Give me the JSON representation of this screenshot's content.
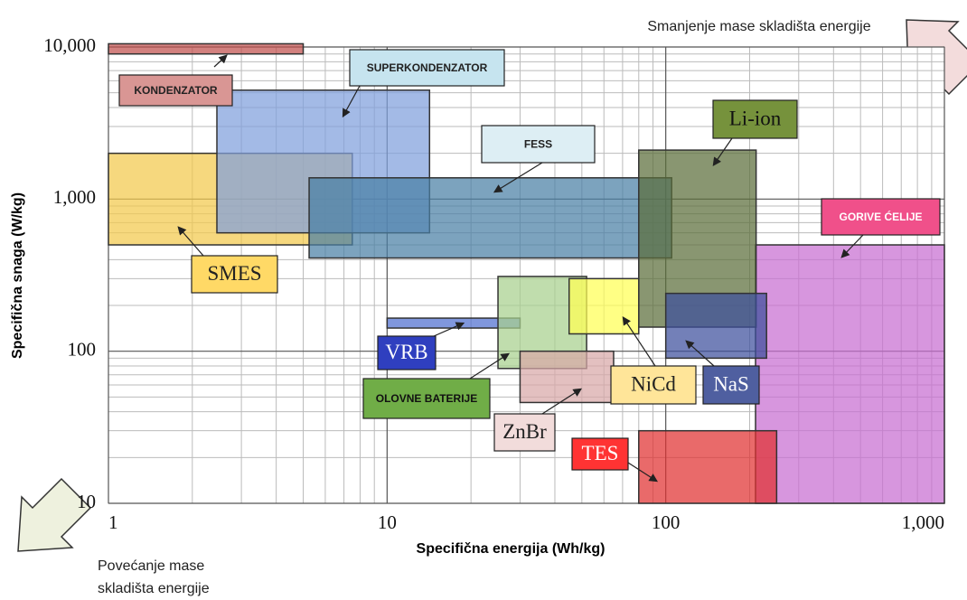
{
  "chart_data": {
    "type": "ragone",
    "x_label": "Specifična energija (Wh/kg)",
    "y_label": "Specifična snaga (W/kg)",
    "log_x": true,
    "log_y": true,
    "grid": true,
    "xlim": [
      1,
      1000
    ],
    "ylim": [
      10,
      10000
    ],
    "xticks": [
      1,
      10,
      100,
      {
        "value": 1000,
        "label": "1,000"
      }
    ],
    "yticks": [
      10,
      100,
      {
        "value": 1000,
        "label": "1,000"
      },
      {
        "value": 10000,
        "label": "10,000"
      }
    ],
    "annotations": [
      "Smanjenje mase skladišta energije",
      "Povećanje mase",
      "skladišta energije"
    ],
    "regions": [
      {
        "name": "GORIVE ĆELIJE",
        "color": "#c76dd1",
        "x": [
          210,
          1000
        ],
        "y": [
          10,
          500
        ]
      },
      {
        "name": "KONDENZATOR",
        "color": "#c0504d",
        "x": [
          1,
          5
        ],
        "y": [
          9000,
          10500
        ]
      },
      {
        "name": "SMES",
        "color": "#f2c94c",
        "x": [
          1,
          7.5
        ],
        "y": [
          500,
          2000
        ]
      },
      {
        "name": "SUPERKONDENZATOR",
        "color": "#7f9fdc",
        "x": [
          2.45,
          14.2
        ],
        "y": [
          600,
          5200
        ]
      },
      {
        "name": "FESS",
        "color": "#4a7fa5",
        "x": [
          5.25,
          105
        ],
        "y": [
          410,
          1380
        ]
      },
      {
        "name": "Li-ion",
        "color": "#5b6e3a",
        "x": [
          80,
          211
        ],
        "y": [
          144,
          2100
        ]
      },
      {
        "name": "VRB",
        "color": "#4f6fd0",
        "x": [
          10,
          30
        ],
        "y": [
          142,
          165
        ]
      },
      {
        "name": "OLOVNE BATERIJE",
        "color": "#a8d08d",
        "x": [
          25,
          52
        ],
        "y": [
          77,
          310
        ]
      },
      {
        "name": "NiCd",
        "color": "#ffff55",
        "x": [
          45,
          80
        ],
        "y": [
          130,
          300
        ]
      },
      {
        "name": "ZnBr",
        "color": "#d8a8a8",
        "x": [
          30,
          65
        ],
        "y": [
          46,
          100
        ]
      },
      {
        "name": "NaS",
        "color": "#3d4f9c",
        "x": [
          100,
          230
        ],
        "y": [
          90,
          240
        ]
      },
      {
        "name": "TES",
        "color": "#e03030",
        "x": [
          80,
          250
        ],
        "y": [
          10,
          30
        ]
      }
    ]
  }
}
